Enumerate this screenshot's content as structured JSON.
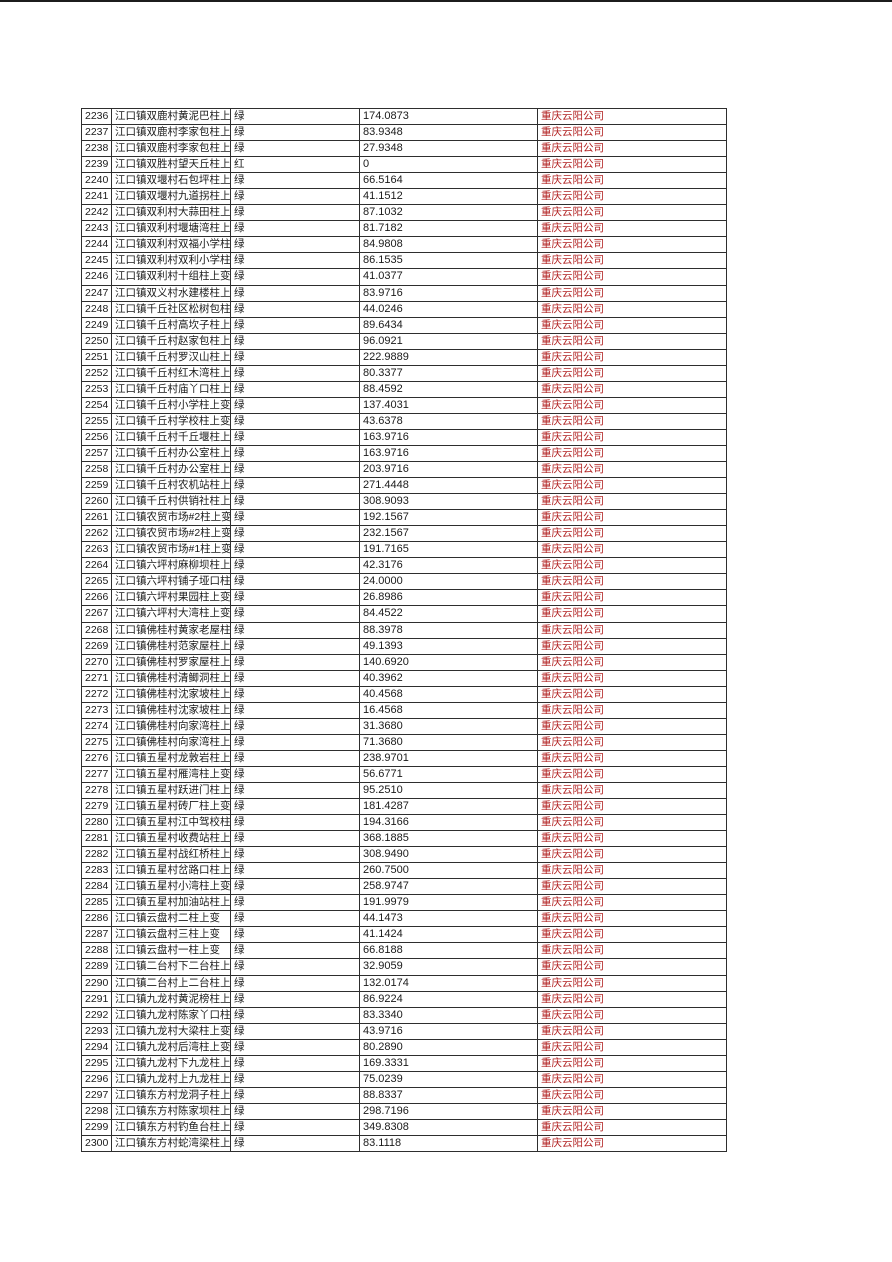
{
  "page": {
    "top_rule_color": "#1c1c1c",
    "background_color": "#ffffff"
  },
  "table": {
    "grid_color": "#2e2e2e",
    "company_text_color": "#b22222",
    "status_green_label": "绿",
    "status_red_label": "红",
    "rows": [
      {
        "id": "2236",
        "name": "江口镇双鹿村黄泥巴柱上变",
        "status": "绿",
        "value": "174.0873",
        "company": "重庆云阳公司"
      },
      {
        "id": "2237",
        "name": "江口镇双鹿村李家包柱上变",
        "status": "绿",
        "value": "83.9348",
        "company": "重庆云阳公司"
      },
      {
        "id": "2238",
        "name": "江口镇双鹿村李家包柱上变",
        "status": "绿",
        "value": "27.9348",
        "company": "重庆云阳公司"
      },
      {
        "id": "2239",
        "name": "江口镇双胜村望天丘柱上变",
        "status": "红",
        "value": "0",
        "company": "重庆云阳公司"
      },
      {
        "id": "2240",
        "name": "江口镇双堰村石包坪柱上变",
        "status": "绿",
        "value": "66.5164",
        "company": "重庆云阳公司"
      },
      {
        "id": "2241",
        "name": "江口镇双堰村九道拐柱上变",
        "status": "绿",
        "value": "41.1512",
        "company": "重庆云阳公司"
      },
      {
        "id": "2242",
        "name": "江口镇双利村大蒜田柱上变",
        "status": "绿",
        "value": "87.1032",
        "company": "重庆云阳公司"
      },
      {
        "id": "2243",
        "name": "江口镇双利村堰塘湾柱上变",
        "status": "绿",
        "value": "81.7182",
        "company": "重庆云阳公司"
      },
      {
        "id": "2244",
        "name": "江口镇双利村双福小学柱上变",
        "status": "绿",
        "value": "84.9808",
        "company": "重庆云阳公司"
      },
      {
        "id": "2245",
        "name": "江口镇双利村双利小学柱上变",
        "status": "绿",
        "value": "86.1535",
        "company": "重庆云阳公司"
      },
      {
        "id": "2246",
        "name": "江口镇双利村十组柱上变",
        "status": "绿",
        "value": "41.0377",
        "company": "重庆云阳公司"
      },
      {
        "id": "2247",
        "name": "江口镇双义村水建楼柱上变",
        "status": "绿",
        "value": "83.9716",
        "company": "重庆云阳公司"
      },
      {
        "id": "2248",
        "name": "江口镇千丘社区松树包柱上变",
        "status": "绿",
        "value": "44.0246",
        "company": "重庆云阳公司"
      },
      {
        "id": "2249",
        "name": "江口镇千丘村高坎子柱上变",
        "status": "绿",
        "value": "89.6434",
        "company": "重庆云阳公司"
      },
      {
        "id": "2250",
        "name": "江口镇千丘村赵家包柱上变",
        "status": "绿",
        "value": "96.0921",
        "company": "重庆云阳公司"
      },
      {
        "id": "2251",
        "name": "江口镇千丘村罗汉山柱上变",
        "status": "绿",
        "value": "222.9889",
        "company": "重庆云阳公司"
      },
      {
        "id": "2252",
        "name": "江口镇千丘村红木湾柱上变",
        "status": "绿",
        "value": "80.3377",
        "company": "重庆云阳公司"
      },
      {
        "id": "2253",
        "name": "江口镇千丘村庙丫口柱上变",
        "status": "绿",
        "value": "88.4592",
        "company": "重庆云阳公司"
      },
      {
        "id": "2254",
        "name": "江口镇千丘村小学柱上变",
        "status": "绿",
        "value": "137.4031",
        "company": "重庆云阳公司"
      },
      {
        "id": "2255",
        "name": "江口镇千丘村学校柱上变",
        "status": "绿",
        "value": "43.6378",
        "company": "重庆云阳公司"
      },
      {
        "id": "2256",
        "name": "江口镇千丘村千丘堰柱上变",
        "status": "绿",
        "value": "163.9716",
        "company": "重庆云阳公司"
      },
      {
        "id": "2257",
        "name": "江口镇千丘村办公室柱上变",
        "status": "绿",
        "value": "163.9716",
        "company": "重庆云阳公司"
      },
      {
        "id": "2258",
        "name": "江口镇千丘村办公室柱上变",
        "status": "绿",
        "value": "203.9716",
        "company": "重庆云阳公司"
      },
      {
        "id": "2259",
        "name": "江口镇千丘村农机站柱上变",
        "status": "绿",
        "value": "271.4448",
        "company": "重庆云阳公司"
      },
      {
        "id": "2260",
        "name": "江口镇千丘村供销社柱上变",
        "status": "绿",
        "value": "308.9093",
        "company": "重庆云阳公司"
      },
      {
        "id": "2261",
        "name": "江口镇农贸市场#2柱上变",
        "status": "绿",
        "value": "192.1567",
        "company": "重庆云阳公司"
      },
      {
        "id": "2262",
        "name": "江口镇农贸市场#2柱上变",
        "status": "绿",
        "value": "232.1567",
        "company": "重庆云阳公司"
      },
      {
        "id": "2263",
        "name": "江口镇农贸市场#1柱上变",
        "status": "绿",
        "value": "191.7165",
        "company": "重庆云阳公司"
      },
      {
        "id": "2264",
        "name": "江口镇六坪村麻柳坝柱上变",
        "status": "绿",
        "value": "42.3176",
        "company": "重庆云阳公司"
      },
      {
        "id": "2265",
        "name": "江口镇六坪村铺子垭口柱上变",
        "status": "绿",
        "value": "24.0000",
        "company": "重庆云阳公司"
      },
      {
        "id": "2266",
        "name": "江口镇六坪村果园柱上变",
        "status": "绿",
        "value": "26.8986",
        "company": "重庆云阳公司"
      },
      {
        "id": "2267",
        "name": "江口镇六坪村大湾柱上变",
        "status": "绿",
        "value": "84.4522",
        "company": "重庆云阳公司"
      },
      {
        "id": "2268",
        "name": "江口镇佛桂村黄家老屋柱上变",
        "status": "绿",
        "value": "88.3978",
        "company": "重庆云阳公司"
      },
      {
        "id": "2269",
        "name": "江口镇佛桂村范家屋柱上变",
        "status": "绿",
        "value": "49.1393",
        "company": "重庆云阳公司"
      },
      {
        "id": "2270",
        "name": "江口镇佛桂村罗家屋柱上变",
        "status": "绿",
        "value": "140.6920",
        "company": "重庆云阳公司"
      },
      {
        "id": "2271",
        "name": "江口镇佛桂村清鲫洞柱上变",
        "status": "绿",
        "value": "40.3962",
        "company": "重庆云阳公司"
      },
      {
        "id": "2272",
        "name": "江口镇佛桂村沈家坡柱上变",
        "status": "绿",
        "value": "40.4568",
        "company": "重庆云阳公司"
      },
      {
        "id": "2273",
        "name": "江口镇佛桂村沈家坡柱上变",
        "status": "绿",
        "value": "16.4568",
        "company": "重庆云阳公司"
      },
      {
        "id": "2274",
        "name": "江口镇佛桂村向家湾柱上变",
        "status": "绿",
        "value": "31.3680",
        "company": "重庆云阳公司"
      },
      {
        "id": "2275",
        "name": "江口镇佛桂村向家湾柱上变",
        "status": "绿",
        "value": "71.3680",
        "company": "重庆云阳公司"
      },
      {
        "id": "2276",
        "name": "江口镇五星村龙敦岩柱上变",
        "status": "绿",
        "value": "238.9701",
        "company": "重庆云阳公司"
      },
      {
        "id": "2277",
        "name": "江口镇五星村雁湾柱上变",
        "status": "绿",
        "value": "56.6771",
        "company": "重庆云阳公司"
      },
      {
        "id": "2278",
        "name": "江口镇五星村跃进门柱上变",
        "status": "绿",
        "value": "95.2510",
        "company": "重庆云阳公司"
      },
      {
        "id": "2279",
        "name": "江口镇五星村砖厂柱上变",
        "status": "绿",
        "value": "181.4287",
        "company": "重庆云阳公司"
      },
      {
        "id": "2280",
        "name": "江口镇五星村江中驾校柱上变",
        "status": "绿",
        "value": "194.3166",
        "company": "重庆云阳公司"
      },
      {
        "id": "2281",
        "name": "江口镇五星村收费站柱上变",
        "status": "绿",
        "value": "368.1885",
        "company": "重庆云阳公司"
      },
      {
        "id": "2282",
        "name": "江口镇五星村战红桥柱上变",
        "status": "绿",
        "value": "308.9490",
        "company": "重庆云阳公司"
      },
      {
        "id": "2283",
        "name": "江口镇五星村岔路口柱上变",
        "status": "绿",
        "value": "260.7500",
        "company": "重庆云阳公司"
      },
      {
        "id": "2284",
        "name": "江口镇五星村小湾柱上变",
        "status": "绿",
        "value": "258.9747",
        "company": "重庆云阳公司"
      },
      {
        "id": "2285",
        "name": "江口镇五星村加油站柱上变",
        "status": "绿",
        "value": "191.9979",
        "company": "重庆云阳公司"
      },
      {
        "id": "2286",
        "name": "江口镇云盘村二柱上变",
        "status": "绿",
        "value": "44.1473",
        "company": "重庆云阳公司"
      },
      {
        "id": "2287",
        "name": "江口镇云盘村三柱上变",
        "status": "绿",
        "value": "41.1424",
        "company": "重庆云阳公司"
      },
      {
        "id": "2288",
        "name": "江口镇云盘村一柱上变",
        "status": "绿",
        "value": "66.8188",
        "company": "重庆云阳公司"
      },
      {
        "id": "2289",
        "name": "江口镇二台村下二台柱上变",
        "status": "绿",
        "value": "32.9059",
        "company": "重庆云阳公司"
      },
      {
        "id": "2290",
        "name": "江口镇二台村上二台柱上变",
        "status": "绿",
        "value": "132.0174",
        "company": "重庆云阳公司"
      },
      {
        "id": "2291",
        "name": "江口镇九龙村黄泥榜柱上变",
        "status": "绿",
        "value": "86.9224",
        "company": "重庆云阳公司"
      },
      {
        "id": "2292",
        "name": "江口镇九龙村陈家丫口柱上变",
        "status": "绿",
        "value": "83.3340",
        "company": "重庆云阳公司"
      },
      {
        "id": "2293",
        "name": "江口镇九龙村大梁柱上变",
        "status": "绿",
        "value": "43.9716",
        "company": "重庆云阳公司"
      },
      {
        "id": "2294",
        "name": "江口镇九龙村后湾柱上变",
        "status": "绿",
        "value": "80.2890",
        "company": "重庆云阳公司"
      },
      {
        "id": "2295",
        "name": "江口镇九龙村下九龙柱上变",
        "status": "绿",
        "value": "169.3331",
        "company": "重庆云阳公司"
      },
      {
        "id": "2296",
        "name": "江口镇九龙村上九龙柱上变",
        "status": "绿",
        "value": "75.0239",
        "company": "重庆云阳公司"
      },
      {
        "id": "2297",
        "name": "江口镇东方村龙洞子柱上变",
        "status": "绿",
        "value": "88.8337",
        "company": "重庆云阳公司"
      },
      {
        "id": "2298",
        "name": "江口镇东方村陈家坝柱上变",
        "status": "绿",
        "value": "298.7196",
        "company": "重庆云阳公司"
      },
      {
        "id": "2299",
        "name": "江口镇东方村钓鱼台柱上变",
        "status": "绿",
        "value": "349.8308",
        "company": "重庆云阳公司"
      },
      {
        "id": "2300",
        "name": "江口镇东方村蛇湾梁柱上变",
        "status": "绿",
        "value": "83.1118",
        "company": "重庆云阳公司"
      }
    ]
  }
}
